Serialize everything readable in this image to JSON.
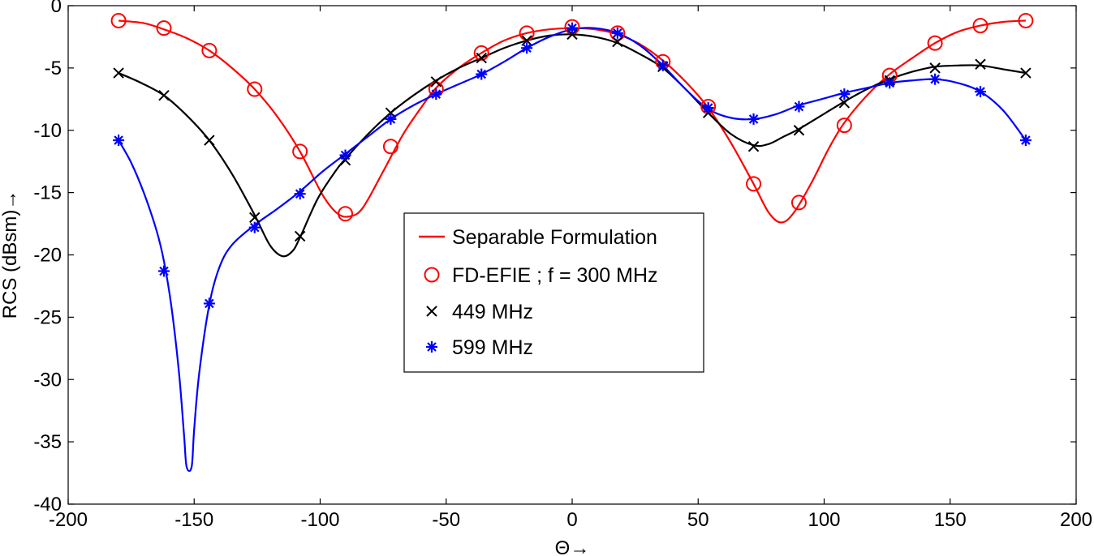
{
  "chart_data": {
    "type": "line",
    "title": "",
    "xlabel": "Θ→",
    "ylabel": "RCS (dBsm)→",
    "xlim": [
      -200,
      200
    ],
    "ylim": [
      -40,
      0
    ],
    "xticks": [
      -200,
      -150,
      -100,
      -50,
      0,
      50,
      100,
      150,
      200
    ],
    "yticks": [
      0,
      -5,
      -10,
      -15,
      -20,
      -25,
      -30,
      -35,
      -40
    ],
    "grid": false,
    "legend_position": "center",
    "legend": [
      {
        "label": "Separable Formulation",
        "style": "red-line"
      },
      {
        "label": "FD-EFIE ; f = 300 MHz",
        "style": "red-circle"
      },
      {
        "label": "449 MHz",
        "style": "black-x"
      },
      {
        "label": "599 MHz",
        "style": "blue-star"
      }
    ],
    "series": [
      {
        "name": "300 MHz",
        "color": "#ff0000",
        "marker": "circle",
        "curve": [
          [
            -180,
            -1.2
          ],
          [
            -170,
            -1.4
          ],
          [
            -162,
            -1.9
          ],
          [
            -153,
            -2.6
          ],
          [
            -144,
            -3.6
          ],
          [
            -135,
            -5.0
          ],
          [
            -126,
            -6.7
          ],
          [
            -117,
            -8.9
          ],
          [
            -108,
            -11.7
          ],
          [
            -99,
            -15.2
          ],
          [
            -93,
            -16.7
          ],
          [
            -88,
            -16.9
          ],
          [
            -83,
            -16.2
          ],
          [
            -75,
            -13.3
          ],
          [
            -67,
            -10.3
          ],
          [
            -60,
            -8.2
          ],
          [
            -54,
            -6.6
          ],
          [
            -45,
            -5.0
          ],
          [
            -36,
            -3.8
          ],
          [
            -27,
            -2.8
          ],
          [
            -18,
            -2.2
          ],
          [
            -9,
            -1.9
          ],
          [
            0,
            -1.8
          ],
          [
            9,
            -1.9
          ],
          [
            18,
            -2.3
          ],
          [
            27,
            -3.1
          ],
          [
            36,
            -4.4
          ],
          [
            45,
            -6.1
          ],
          [
            54,
            -8.2
          ],
          [
            63,
            -11.0
          ],
          [
            72,
            -14.3
          ],
          [
            78,
            -16.6
          ],
          [
            83,
            -17.4
          ],
          [
            88,
            -16.6
          ],
          [
            95,
            -14.2
          ],
          [
            102,
            -11.4
          ],
          [
            108,
            -9.4
          ],
          [
            117,
            -7.2
          ],
          [
            126,
            -5.5
          ],
          [
            135,
            -4.2
          ],
          [
            144,
            -3.0
          ],
          [
            153,
            -2.1
          ],
          [
            162,
            -1.6
          ],
          [
            171,
            -1.3
          ],
          [
            180,
            -1.2
          ]
        ],
        "markers": [
          [
            -180,
            -1.2
          ],
          [
            -162,
            -1.8
          ],
          [
            -144,
            -3.6
          ],
          [
            -126,
            -6.7
          ],
          [
            -108,
            -11.7
          ],
          [
            -90,
            -16.7
          ],
          [
            -72,
            -11.3
          ],
          [
            -54,
            -6.7
          ],
          [
            -36,
            -3.8
          ],
          [
            -18,
            -2.2
          ],
          [
            0,
            -1.7
          ],
          [
            18,
            -2.2
          ],
          [
            36,
            -4.5
          ],
          [
            54,
            -8.1
          ],
          [
            72,
            -14.3
          ],
          [
            90,
            -15.8
          ],
          [
            108,
            -9.6
          ],
          [
            126,
            -5.6
          ],
          [
            144,
            -3.0
          ],
          [
            162,
            -1.6
          ],
          [
            180,
            -1.2
          ]
        ]
      },
      {
        "name": "449 MHz",
        "color": "#000000",
        "marker": "x",
        "curve": [
          [
            -180,
            -5.4
          ],
          [
            -171,
            -6.2
          ],
          [
            -162,
            -7.2
          ],
          [
            -153,
            -8.8
          ],
          [
            -144,
            -10.8
          ],
          [
            -135,
            -13.5
          ],
          [
            -126,
            -16.8
          ],
          [
            -120,
            -19.2
          ],
          [
            -115,
            -20.1
          ],
          [
            -111,
            -19.7
          ],
          [
            -108,
            -18.6
          ],
          [
            -101,
            -15.5
          ],
          [
            -94,
            -13.3
          ],
          [
            -90,
            -12.3
          ],
          [
            -81,
            -10.3
          ],
          [
            -72,
            -8.6
          ],
          [
            -63,
            -7.2
          ],
          [
            -54,
            -6.0
          ],
          [
            -45,
            -5.0
          ],
          [
            -36,
            -4.2
          ],
          [
            -27,
            -3.4
          ],
          [
            -18,
            -2.8
          ],
          [
            -9,
            -2.4
          ],
          [
            0,
            -2.3
          ],
          [
            9,
            -2.5
          ],
          [
            18,
            -3.0
          ],
          [
            27,
            -3.9
          ],
          [
            36,
            -5.0
          ],
          [
            45,
            -6.7
          ],
          [
            54,
            -8.6
          ],
          [
            63,
            -10.3
          ],
          [
            72,
            -11.2
          ],
          [
            78,
            -11.1
          ],
          [
            84,
            -10.5
          ],
          [
            90,
            -9.9
          ],
          [
            99,
            -8.8
          ],
          [
            108,
            -7.7
          ],
          [
            117,
            -6.7
          ],
          [
            126,
            -5.9
          ],
          [
            135,
            -5.3
          ],
          [
            144,
            -4.9
          ],
          [
            153,
            -4.8
          ],
          [
            162,
            -4.8
          ],
          [
            171,
            -5.1
          ],
          [
            180,
            -5.4
          ]
        ],
        "markers": [
          [
            -180,
            -5.4
          ],
          [
            -162,
            -7.2
          ],
          [
            -144,
            -10.8
          ],
          [
            -126,
            -17.0
          ],
          [
            -108,
            -18.5
          ],
          [
            -90,
            -12.4
          ],
          [
            -72,
            -8.6
          ],
          [
            -54,
            -6.1
          ],
          [
            -36,
            -4.2
          ],
          [
            -18,
            -2.8
          ],
          [
            0,
            -2.3
          ],
          [
            18,
            -2.9
          ],
          [
            36,
            -4.9
          ],
          [
            54,
            -8.6
          ],
          [
            72,
            -11.3
          ],
          [
            90,
            -10.0
          ],
          [
            108,
            -7.8
          ],
          [
            126,
            -6.0
          ],
          [
            144,
            -5.0
          ],
          [
            162,
            -4.7
          ],
          [
            180,
            -5.4
          ]
        ]
      },
      {
        "name": "599 MHz",
        "color": "#0000ff",
        "marker": "star",
        "curve": [
          [
            -180,
            -10.8
          ],
          [
            -175,
            -12.6
          ],
          [
            -170,
            -15.0
          ],
          [
            -165,
            -18.0
          ],
          [
            -162,
            -20.5
          ],
          [
            -159,
            -24.2
          ],
          [
            -156,
            -29.5
          ],
          [
            -154,
            -34.5
          ],
          [
            -153,
            -37.0
          ],
          [
            -151,
            -37.0
          ],
          [
            -150,
            -34.0
          ],
          [
            -148,
            -29.5
          ],
          [
            -144,
            -24.0
          ],
          [
            -140,
            -21.0
          ],
          [
            -135,
            -19.2
          ],
          [
            -126,
            -17.6
          ],
          [
            -117,
            -16.3
          ],
          [
            -108,
            -14.9
          ],
          [
            -99,
            -13.3
          ],
          [
            -90,
            -11.9
          ],
          [
            -81,
            -10.5
          ],
          [
            -72,
            -9.1
          ],
          [
            -63,
            -8.0
          ],
          [
            -54,
            -7.1
          ],
          [
            -45,
            -6.3
          ],
          [
            -36,
            -5.5
          ],
          [
            -27,
            -4.5
          ],
          [
            -18,
            -3.4
          ],
          [
            -9,
            -2.5
          ],
          [
            0,
            -1.9
          ],
          [
            9,
            -1.8
          ],
          [
            18,
            -2.2
          ],
          [
            27,
            -3.2
          ],
          [
            36,
            -4.8
          ],
          [
            45,
            -6.7
          ],
          [
            54,
            -8.3
          ],
          [
            63,
            -9.0
          ],
          [
            72,
            -9.1
          ],
          [
            81,
            -8.7
          ],
          [
            90,
            -8.0
          ],
          [
            99,
            -7.5
          ],
          [
            108,
            -7.0
          ],
          [
            117,
            -6.6
          ],
          [
            126,
            -6.2
          ],
          [
            135,
            -6.0
          ],
          [
            144,
            -5.9
          ],
          [
            153,
            -6.2
          ],
          [
            162,
            -6.9
          ],
          [
            171,
            -8.4
          ],
          [
            180,
            -10.8
          ]
        ],
        "markers": [
          [
            -180,
            -10.8
          ],
          [
            -162,
            -21.3
          ],
          [
            -144,
            -23.9
          ],
          [
            -126,
            -17.8
          ],
          [
            -108,
            -15.1
          ],
          [
            -90,
            -12.0
          ],
          [
            -72,
            -9.1
          ],
          [
            -54,
            -7.1
          ],
          [
            -36,
            -5.5
          ],
          [
            -18,
            -3.4
          ],
          [
            0,
            -1.8
          ],
          [
            18,
            -2.2
          ],
          [
            36,
            -4.8
          ],
          [
            54,
            -8.2
          ],
          [
            72,
            -9.1
          ],
          [
            90,
            -8.1
          ],
          [
            108,
            -7.1
          ],
          [
            126,
            -6.2
          ],
          [
            144,
            -5.9
          ],
          [
            162,
            -6.9
          ],
          [
            180,
            -10.8
          ]
        ]
      }
    ]
  }
}
